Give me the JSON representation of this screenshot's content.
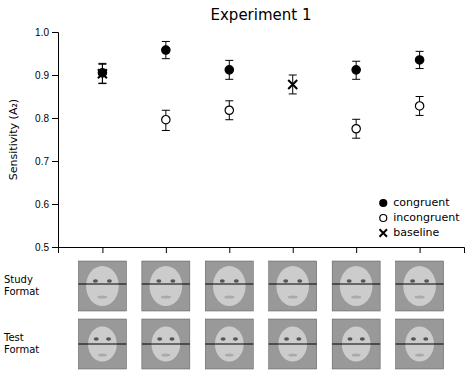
{
  "chart_data": {
    "type": "scatter",
    "title": "Experiment 1",
    "y_label": "Sensitivity (A₂)",
    "annotations": [
      "Study\nFormat",
      "Test\nFormat"
    ],
    "xlim": [
      0.3,
      6.7
    ],
    "xticks": [
      1,
      2,
      3,
      4,
      5,
      6
    ],
    "ylim": [
      0.5,
      1.0
    ],
    "yticks": [
      0.5,
      0.6,
      0.7,
      0.8,
      0.9,
      {
        "value": 1.0,
        "label": "1.0"
      }
    ],
    "tick_labels": "y",
    "grid": false,
    "legend": "lower right",
    "series": [
      {
        "name": "congruent",
        "color": "#000000",
        "marker": "circle",
        "x": [
          1,
          2,
          3,
          5,
          6
        ],
        "values": [
          0.905,
          0.958,
          0.912,
          0.912,
          0.935
        ],
        "error_minus": [
          0.025,
          0.02,
          0.022,
          0.022,
          0.02
        ],
        "error_plus": [
          0.022,
          0.02,
          0.022,
          0.02,
          0.02
        ]
      },
      {
        "name": "incongruent",
        "color": "#000000",
        "marker": "open-circle",
        "x": [
          2,
          3,
          5,
          6
        ],
        "values": [
          0.796,
          0.818,
          0.775,
          0.828
        ],
        "error_minus": [
          0.025,
          0.022,
          0.022,
          0.022
        ],
        "error_plus": [
          0.022,
          0.022,
          0.022,
          0.022
        ]
      },
      {
        "name": "baseline",
        "color": "#000000",
        "marker": "x",
        "x": [
          1,
          4
        ],
        "values": [
          0.903,
          0.878
        ],
        "error_minus": [
          0.022,
          0.022
        ],
        "error_plus": [
          0.022,
          0.022
        ]
      }
    ]
  }
}
